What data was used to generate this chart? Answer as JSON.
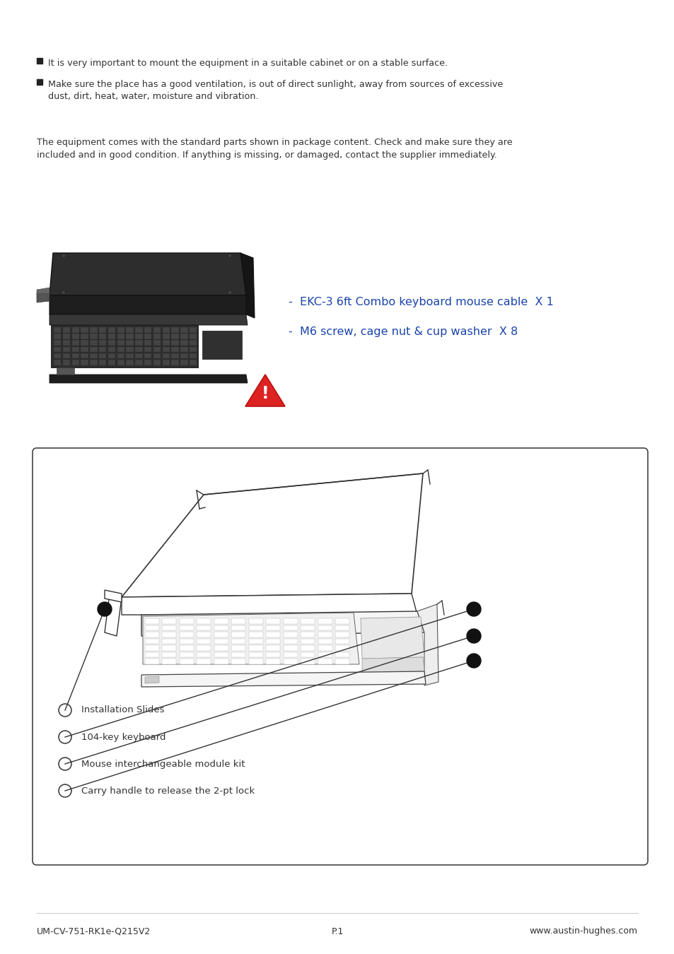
{
  "background_color": "#ffffff",
  "bullet_points": [
    "It is very important to mount the equipment in a suitable cabinet or on a stable surface.",
    "Make sure the place has a good ventilation, is out of direct sunlight, away from sources of excessive\ndust, dirt, heat, water, moisture and vibration."
  ],
  "package_text": "The equipment comes with the standard parts shown in package content. Check and make sure they are\nincluded and in good condition. If anything is missing, or damaged, contact the supplier immediately.",
  "accessory_items": [
    "-  EKC-3 6ft Combo keyboard mouse cable  X 1",
    "-  M6 screw, cage nut & cup washer  X 8"
  ],
  "accessory_color": "#1a44aa",
  "structure_labels": [
    "Installation Slides",
    "104-key keyboard",
    "Mouse interchangeable module kit",
    "Carry handle to release the 2-pt lock"
  ],
  "footer_left": "UM-CV-751-RK1e-Q215V2",
  "footer_center": "P.1",
  "footer_right": "www.austin-hughes.com",
  "text_color": "#333333",
  "box_border_color": "#444444"
}
